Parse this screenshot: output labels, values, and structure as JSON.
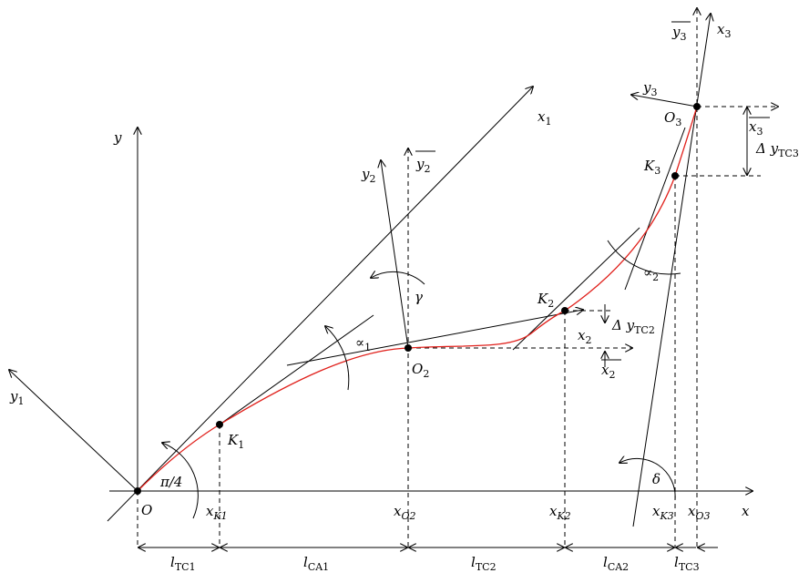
{
  "labels": {
    "y": "y",
    "y1": "y",
    "y1_sub": "1",
    "x1": "x",
    "x1_sub": "1",
    "y2": "y",
    "y2_sub": "2",
    "y2bar": "y",
    "y2bar_sub": "2",
    "x2": "x",
    "x2_sub": "2",
    "x2bar": "x",
    "x2bar_sub": "2",
    "y3": "y",
    "y3_sub": "3",
    "y3bar": "y",
    "y3bar_sub": "3",
    "x3": "x",
    "x3_sub": "3",
    "x3bar": "x",
    "x3bar_sub": "3",
    "x_axis": "x",
    "O": "O",
    "O2": "O",
    "O2_sub": "2",
    "O3": "O",
    "O3_sub": "3",
    "K1": "K",
    "K1_sub": "1",
    "K2": "K",
    "K2_sub": "2",
    "K3": "K",
    "K3_sub": "3",
    "pi4": "π/4",
    "alpha1": "∝",
    "alpha1_sub": "1",
    "alpha2": "∝",
    "alpha2_sub": "2",
    "gamma": "γ",
    "delta": "δ",
    "dy_tc2": "Δ y",
    "dy_tc2_sub": "TC2",
    "dy_tc3": "Δ y",
    "dy_tc3_sub": "TC3",
    "xK1": "x",
    "xK1_sub": "K1",
    "xO2": "x",
    "xO2_sub": "O2",
    "xK2": "x",
    "xK2_sub": "K2",
    "xK3": "x",
    "xK3_sub": "K3",
    "xO3": "x",
    "xO3_sub": "O3",
    "lTC1": "l",
    "lTC1_sub": "TC1",
    "lCA1": "l",
    "lCA1_sub": "CA1",
    "lTC2": "l",
    "lTC2_sub": "TC2",
    "lCA2": "l",
    "lCA2_sub": "CA2",
    "lTC3": "l",
    "lTC3_sub": "TC3"
  },
  "colors": {
    "curve": "#e0201b",
    "lines": "#000000"
  }
}
